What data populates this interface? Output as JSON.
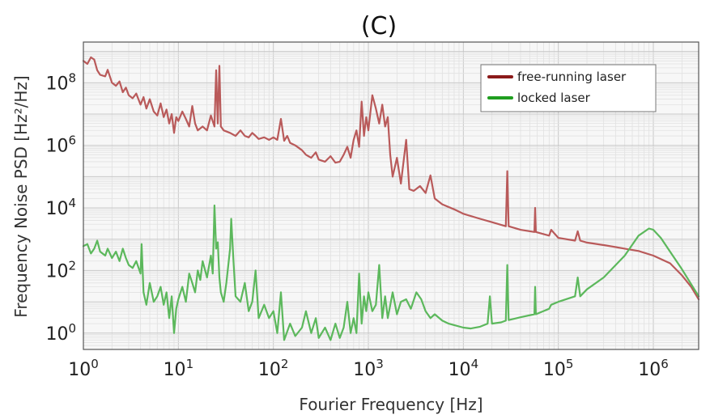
{
  "chart_data": {
    "type": "line",
    "title": "(C)",
    "xlabel": "Fourier Frequency [Hz]",
    "ylabel": "Frequency Noise PSD [Hz²/Hz]",
    "x_scale": "log",
    "y_scale": "log",
    "xlim": [
      1,
      3000000
    ],
    "ylim": [
      0.3,
      2000000000
    ],
    "x_ticks": [
      {
        "value": 1,
        "label_base": "10",
        "label_exp": "0"
      },
      {
        "value": 10,
        "label_base": "10",
        "label_exp": "1"
      },
      {
        "value": 100,
        "label_base": "10",
        "label_exp": "2"
      },
      {
        "value": 1000,
        "label_base": "10",
        "label_exp": "3"
      },
      {
        "value": 10000,
        "label_base": "10",
        "label_exp": "4"
      },
      {
        "value": 100000,
        "label_base": "10",
        "label_exp": "5"
      },
      {
        "value": 1000000,
        "label_base": "10",
        "label_exp": "6"
      }
    ],
    "y_ticks": [
      {
        "value": 1,
        "label_base": "10",
        "label_exp": "0"
      },
      {
        "value": 100,
        "label_base": "10",
        "label_exp": "2"
      },
      {
        "value": 10000,
        "label_base": "10",
        "label_exp": "4"
      },
      {
        "value": 1000000,
        "label_base": "10",
        "label_exp": "6"
      },
      {
        "value": 100000000,
        "label_base": "10",
        "label_exp": "8"
      }
    ],
    "grid": true,
    "legend_position": "top-right",
    "series": [
      {
        "name": "free-running laser",
        "color": "#b95a5a",
        "legend_color": "#8b1a1a",
        "points": [
          [
            1,
            500000000
          ],
          [
            1.1,
            400000000
          ],
          [
            1.2,
            650000000
          ],
          [
            1.3,
            550000000
          ],
          [
            1.4,
            250000000
          ],
          [
            1.5,
            180000000
          ],
          [
            1.7,
            160000000
          ],
          [
            1.8,
            260000000
          ],
          [
            2,
            100000000
          ],
          [
            2.2,
            80000000
          ],
          [
            2.4,
            110000000
          ],
          [
            2.6,
            50000000
          ],
          [
            2.8,
            70000000
          ],
          [
            3,
            40000000
          ],
          [
            3.3,
            32000000
          ],
          [
            3.6,
            45000000
          ],
          [
            4,
            20000000
          ],
          [
            4.3,
            35000000
          ],
          [
            4.6,
            15000000
          ],
          [
            5,
            30000000
          ],
          [
            5.5,
            12000000
          ],
          [
            6,
            9000000
          ],
          [
            6.5,
            22000000
          ],
          [
            7,
            8000000
          ],
          [
            7.5,
            14000000
          ],
          [
            8,
            5000000
          ],
          [
            8.5,
            10000000
          ],
          [
            9,
            2500000
          ],
          [
            9.5,
            8000000
          ],
          [
            10,
            6000000
          ],
          [
            11,
            12000000
          ],
          [
            12,
            7000000
          ],
          [
            13,
            4000000
          ],
          [
            14,
            18000000
          ],
          [
            15,
            5000000
          ],
          [
            16,
            3000000
          ],
          [
            18,
            4000000
          ],
          [
            20,
            3000000
          ],
          [
            22,
            9000000
          ],
          [
            24,
            4000000
          ],
          [
            25,
            250000000
          ],
          [
            26,
            5000000
          ],
          [
            27,
            350000000
          ],
          [
            28,
            4000000
          ],
          [
            30,
            3000000
          ],
          [
            35,
            2500000
          ],
          [
            40,
            2000000
          ],
          [
            45,
            3000000
          ],
          [
            50,
            2000000
          ],
          [
            55,
            1800000
          ],
          [
            60,
            2500000
          ],
          [
            65,
            2000000
          ],
          [
            70,
            1600000
          ],
          [
            80,
            1800000
          ],
          [
            90,
            1500000
          ],
          [
            100,
            1800000
          ],
          [
            110,
            1500000
          ],
          [
            120,
            7000000
          ],
          [
            130,
            1400000
          ],
          [
            140,
            2000000
          ],
          [
            150,
            1200000
          ],
          [
            170,
            1000000
          ],
          [
            200,
            700000
          ],
          [
            220,
            500000
          ],
          [
            250,
            400000
          ],
          [
            280,
            600000
          ],
          [
            300,
            350000
          ],
          [
            350,
            300000
          ],
          [
            400,
            450000
          ],
          [
            450,
            280000
          ],
          [
            500,
            300000
          ],
          [
            550,
            500000
          ],
          [
            600,
            900000
          ],
          [
            650,
            400000
          ],
          [
            700,
            1500000
          ],
          [
            750,
            3000000
          ],
          [
            800,
            900000
          ],
          [
            850,
            25000000
          ],
          [
            900,
            2000000
          ],
          [
            950,
            8000000
          ],
          [
            1000,
            3000000
          ],
          [
            1100,
            40000000
          ],
          [
            1200,
            15000000
          ],
          [
            1300,
            5000000
          ],
          [
            1400,
            20000000
          ],
          [
            1500,
            4000000
          ],
          [
            1600,
            8000000
          ],
          [
            1700,
            500000
          ],
          [
            1800,
            100000
          ],
          [
            2000,
            400000
          ],
          [
            2200,
            60000
          ],
          [
            2500,
            1500000
          ],
          [
            2700,
            40000
          ],
          [
            3000,
            35000
          ],
          [
            3500,
            50000
          ],
          [
            4000,
            30000
          ],
          [
            4500,
            110000
          ],
          [
            5000,
            20000
          ],
          [
            6000,
            13000
          ],
          [
            8000,
            9000
          ],
          [
            10000,
            6500
          ],
          [
            15000,
            4500
          ],
          [
            20000,
            3500
          ],
          [
            28000,
            2600
          ],
          [
            29000,
            150000
          ],
          [
            30000,
            2600
          ],
          [
            40000,
            2000
          ],
          [
            56000,
            1700
          ],
          [
            57000,
            10000
          ],
          [
            58000,
            1700
          ],
          [
            80000,
            1300
          ],
          [
            84000,
            2000
          ],
          [
            100000,
            1100
          ],
          [
            150000,
            900
          ],
          [
            160000,
            1800
          ],
          [
            170000,
            900
          ],
          [
            200000,
            780
          ],
          [
            300000,
            650
          ],
          [
            500000,
            500
          ],
          [
            700000,
            420
          ],
          [
            1000000,
            300
          ],
          [
            1500000,
            170
          ],
          [
            2000000,
            70
          ],
          [
            2500000,
            30
          ],
          [
            3000000,
            12
          ]
        ]
      },
      {
        "name": "locked laser",
        "color": "#5cb85c",
        "legend_color": "#1f9e1f",
        "points": [
          [
            1,
            600
          ],
          [
            1.1,
            700
          ],
          [
            1.2,
            350
          ],
          [
            1.3,
            500
          ],
          [
            1.4,
            900
          ],
          [
            1.5,
            400
          ],
          [
            1.7,
            300
          ],
          [
            1.8,
            500
          ],
          [
            2,
            250
          ],
          [
            2.2,
            400
          ],
          [
            2.4,
            200
          ],
          [
            2.6,
            500
          ],
          [
            2.8,
            250
          ],
          [
            3,
            150
          ],
          [
            3.3,
            120
          ],
          [
            3.6,
            200
          ],
          [
            4,
            80
          ],
          [
            4.1,
            700
          ],
          [
            4.3,
            20
          ],
          [
            4.6,
            8
          ],
          [
            5,
            40
          ],
          [
            5.5,
            10
          ],
          [
            6,
            15
          ],
          [
            6.5,
            30
          ],
          [
            7,
            8
          ],
          [
            7.5,
            20
          ],
          [
            8,
            3
          ],
          [
            8.5,
            15
          ],
          [
            9,
            1
          ],
          [
            9.5,
            6
          ],
          [
            10,
            12
          ],
          [
            11,
            30
          ],
          [
            12,
            10
          ],
          [
            13,
            80
          ],
          [
            14,
            40
          ],
          [
            15,
            20
          ],
          [
            16,
            100
          ],
          [
            17,
            50
          ],
          [
            18,
            200
          ],
          [
            20,
            60
          ],
          [
            22,
            300
          ],
          [
            23,
            80
          ],
          [
            24,
            12000
          ],
          [
            25,
            500
          ],
          [
            26,
            800
          ],
          [
            27,
            60
          ],
          [
            28,
            20
          ],
          [
            30,
            10
          ],
          [
            32,
            40
          ],
          [
            35,
            500
          ],
          [
            36,
            4500
          ],
          [
            38,
            200
          ],
          [
            40,
            15
          ],
          [
            45,
            10
          ],
          [
            50,
            40
          ],
          [
            55,
            5
          ],
          [
            60,
            10
          ],
          [
            65,
            100
          ],
          [
            70,
            3
          ],
          [
            80,
            8
          ],
          [
            90,
            3
          ],
          [
            100,
            5
          ],
          [
            110,
            1
          ],
          [
            120,
            20
          ],
          [
            130,
            0.6
          ],
          [
            150,
            2
          ],
          [
            170,
            0.8
          ],
          [
            200,
            1.5
          ],
          [
            220,
            5
          ],
          [
            250,
            1
          ],
          [
            280,
            3
          ],
          [
            300,
            0.7
          ],
          [
            350,
            1.5
          ],
          [
            400,
            0.6
          ],
          [
            450,
            2
          ],
          [
            500,
            0.7
          ],
          [
            550,
            1.5
          ],
          [
            600,
            10
          ],
          [
            650,
            1
          ],
          [
            700,
            3
          ],
          [
            750,
            1
          ],
          [
            800,
            80
          ],
          [
            850,
            2
          ],
          [
            900,
            15
          ],
          [
            950,
            5
          ],
          [
            1000,
            20
          ],
          [
            1100,
            5
          ],
          [
            1200,
            8
          ],
          [
            1300,
            150
          ],
          [
            1400,
            3
          ],
          [
            1500,
            15
          ],
          [
            1600,
            3
          ],
          [
            1800,
            20
          ],
          [
            2000,
            4
          ],
          [
            2200,
            10
          ],
          [
            2500,
            12
          ],
          [
            2800,
            6
          ],
          [
            3200,
            20
          ],
          [
            3600,
            12
          ],
          [
            4000,
            5
          ],
          [
            4500,
            3
          ],
          [
            5000,
            4
          ],
          [
            6000,
            2.5
          ],
          [
            7000,
            2
          ],
          [
            8000,
            1.8
          ],
          [
            10000,
            1.5
          ],
          [
            12000,
            1.4
          ],
          [
            15000,
            1.6
          ],
          [
            18000,
            2
          ],
          [
            19000,
            15
          ],
          [
            20000,
            2
          ],
          [
            25000,
            2.2
          ],
          [
            28000,
            2.5
          ],
          [
            29000,
            150
          ],
          [
            30000,
            2.6
          ],
          [
            40000,
            3.2
          ],
          [
            56000,
            4
          ],
          [
            57000,
            30
          ],
          [
            58000,
            4
          ],
          [
            80000,
            6
          ],
          [
            84000,
            8
          ],
          [
            100000,
            10
          ],
          [
            150000,
            15
          ],
          [
            160000,
            60
          ],
          [
            170000,
            15
          ],
          [
            200000,
            25
          ],
          [
            300000,
            60
          ],
          [
            500000,
            300
          ],
          [
            700000,
            1300
          ],
          [
            900000,
            2200
          ],
          [
            1000000,
            2000
          ],
          [
            1200000,
            1100
          ],
          [
            1500000,
            400
          ],
          [
            2000000,
            110
          ],
          [
            3000000,
            15
          ]
        ]
      }
    ]
  }
}
